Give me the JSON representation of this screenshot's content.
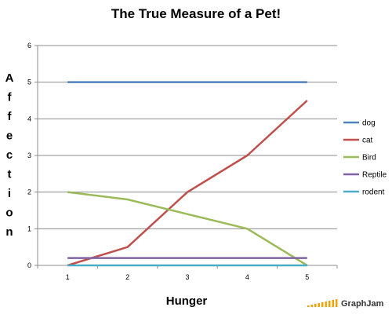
{
  "chart_data": {
    "type": "line",
    "title": "The True Measure of a Pet!",
    "xlabel": "Hunger",
    "ylabel": "Affection",
    "x": [
      1,
      2,
      3,
      4,
      5
    ],
    "xlim": [
      0.5,
      5.5
    ],
    "ylim": [
      0,
      6
    ],
    "yticks": [
      0,
      1,
      2,
      3,
      4,
      5,
      6
    ],
    "grid": true,
    "legend_position": "right",
    "series": [
      {
        "name": "dog",
        "color": "#4f81bd",
        "values": [
          5,
          5,
          5,
          5,
          5
        ]
      },
      {
        "name": "cat",
        "color": "#c0504d",
        "values": [
          0,
          0.5,
          2,
          3,
          4.5
        ]
      },
      {
        "name": "Bird",
        "color": "#9bbb59",
        "values": [
          2,
          1.8,
          1.4,
          1.0,
          0
        ]
      },
      {
        "name": "Reptile",
        "color": "#8064a2",
        "values": [
          0.2,
          0.2,
          0.2,
          0.2,
          0.2
        ]
      },
      {
        "name": "rodent",
        "color": "#4bacc6",
        "values": [
          0,
          0,
          0,
          0,
          0
        ]
      }
    ]
  },
  "branding": {
    "logo_text": "GraphJam",
    "logo_color": "#f2a200"
  }
}
